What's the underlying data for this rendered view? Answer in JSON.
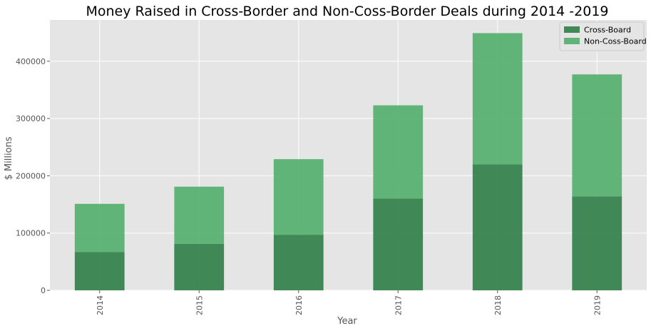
{
  "chart_data": {
    "type": "bar",
    "stacked": true,
    "title": "Money Raised in Cross-Border and Non-Coss-Border Deals during 2014 -2019",
    "xlabel": "Year",
    "ylabel": "$ Millions",
    "categories": [
      "2014",
      "2015",
      "2016",
      "2017",
      "2018",
      "2019"
    ],
    "series": [
      {
        "name": "Cross-Board",
        "color": "#2e7d46",
        "values": [
          67000,
          81000,
          97000,
          160000,
          220000,
          164000
        ]
      },
      {
        "name": "Non-Coss-Board",
        "color": "#52ae6c",
        "values": [
          84000,
          100000,
          132000,
          163000,
          229000,
          213000
        ]
      }
    ],
    "ylim": [
      0,
      472000
    ],
    "yticks": [
      0,
      100000,
      200000,
      300000,
      400000
    ],
    "grid": true,
    "legend_position": "top-right"
  }
}
